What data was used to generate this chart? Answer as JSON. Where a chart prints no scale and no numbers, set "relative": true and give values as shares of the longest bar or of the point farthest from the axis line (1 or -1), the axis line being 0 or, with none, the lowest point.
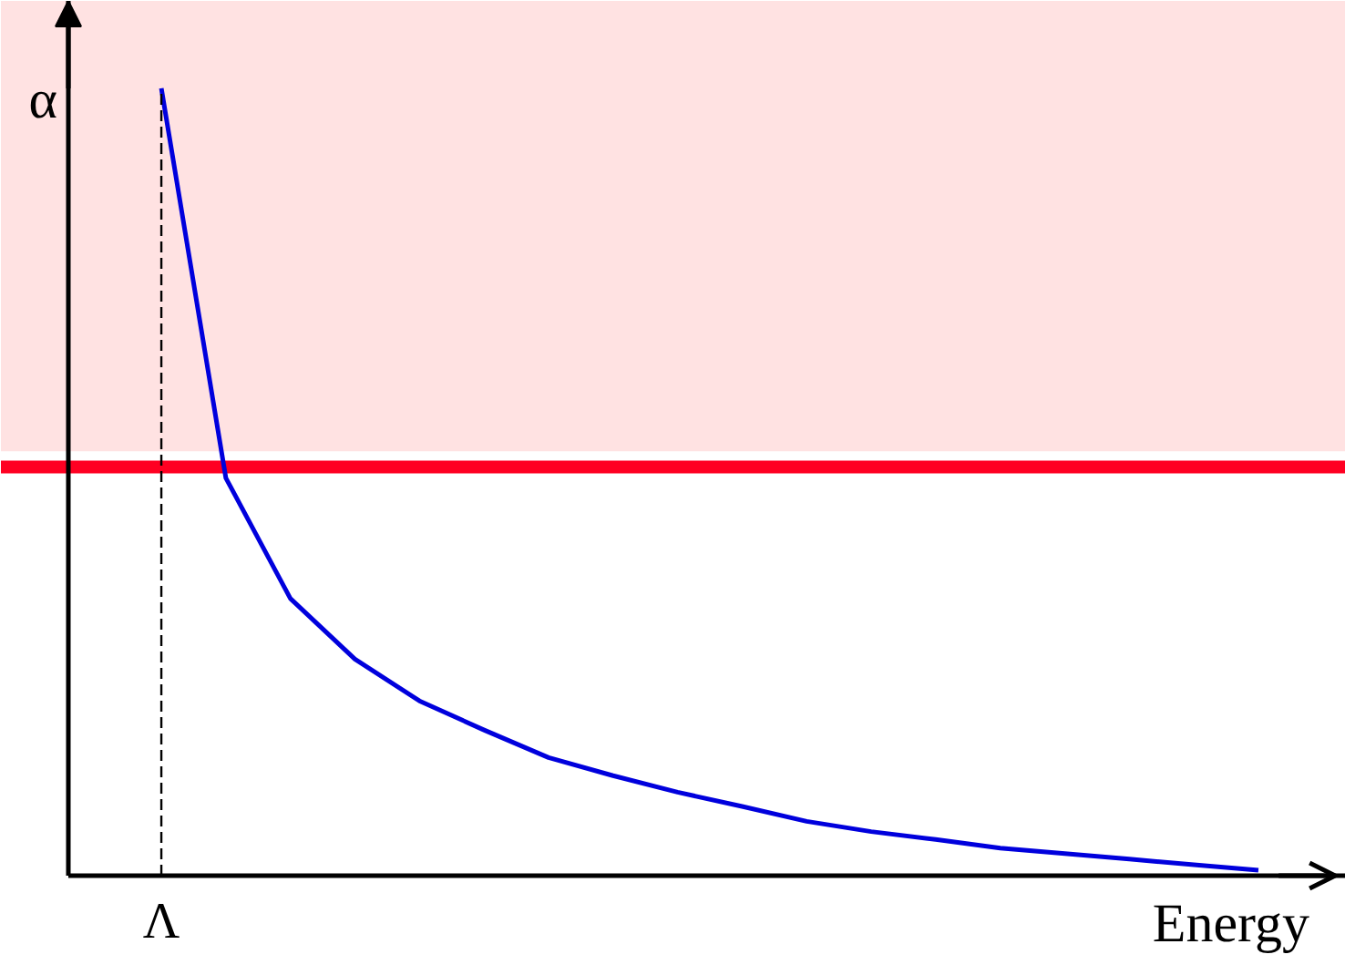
{
  "chart_data": {
    "type": "line",
    "relative": true,
    "xlabel": "Energy",
    "ylabel": "α",
    "categories": [
      null,
      null,
      null,
      null,
      null,
      null,
      null,
      null,
      null,
      null,
      null,
      null,
      null,
      null,
      null,
      null,
      null,
      null
    ],
    "series": [
      {
        "color": "#0000dd",
        "values": [
          1.0,
          0.505,
          0.352,
          0.275,
          0.222,
          0.185,
          0.15,
          0.127,
          0.106,
          0.088,
          0.069,
          0.056,
          0.046,
          0.035,
          0.028,
          0.021,
          0.014,
          0.007
        ]
      }
    ],
    "annotations": [
      "Λ"
    ],
    "ref_lines": [
      {
        "axis": "y",
        "value": 0.519,
        "color": "#ff0022"
      }
    ],
    "bands": [
      {
        "axis": "y",
        "from": 0.539,
        "to": 1.111,
        "color": "#ffe2e2"
      }
    ],
    "grid": false,
    "marker": "none",
    "line_style": "solid"
  }
}
